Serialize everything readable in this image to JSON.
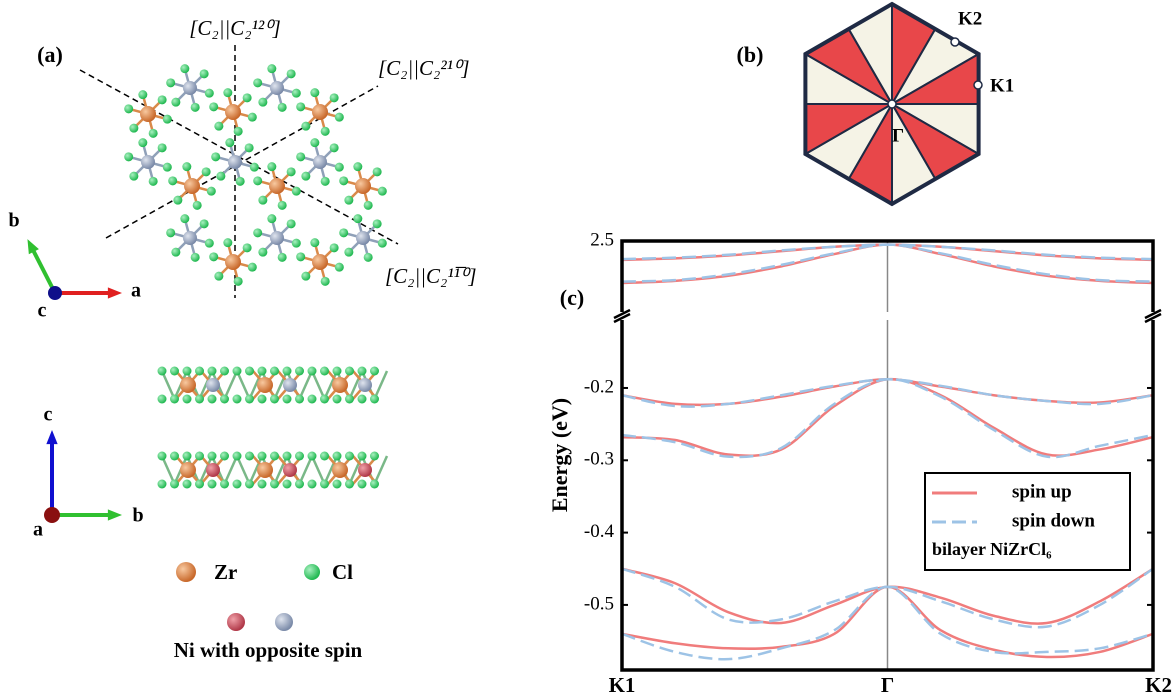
{
  "panel_a": {
    "label": "(a)",
    "symmetry_ops": [
      "[C₂||C₂¹²⁰]",
      "[C₂||C₂²¹⁰]",
      "[C₂||C₂¹¹̅⁰]"
    ],
    "top_axes": {
      "a": "a",
      "b": "b",
      "c": "c"
    },
    "side_axes": {
      "c": "c",
      "b": "b",
      "a": "a"
    },
    "legend": {
      "zr": "Zr",
      "cl": "Cl",
      "ni": "Ni with opposite spin"
    }
  },
  "panel_b": {
    "label": "(b)",
    "points": {
      "k2": "K2",
      "k1": "K1",
      "gamma": "Γ"
    }
  },
  "chart_data": {
    "type": "line",
    "panel_label": "(c)",
    "y_label": "Energy (eV)",
    "x": [
      0,
      0.1,
      0.2,
      0.3,
      0.4,
      0.5,
      0.6,
      0.7,
      0.8,
      0.9,
      1
    ],
    "xlim": [
      0,
      1
    ],
    "xticks": [
      {
        "value": 0,
        "label": "K1"
      },
      {
        "value": 0.5,
        "label": "Γ"
      },
      {
        "value": 1,
        "label": "K2"
      }
    ],
    "ylim": [
      -0.59,
      -0.106
    ],
    "yticks": [
      -0.2,
      -0.3,
      -0.4,
      -0.5
    ],
    "ylim_upper": [
      2.402,
      2.5
    ],
    "yticks_upper": [
      2.5
    ],
    "series": [
      {
        "name": "spin up",
        "color": "#f07c7c",
        "dashed": false,
        "bands": [
          [
            -0.21,
            -0.222,
            -0.222,
            -0.212,
            -0.198,
            -0.188,
            -0.198,
            -0.21,
            -0.218,
            -0.22,
            -0.21
          ],
          [
            -0.268,
            -0.272,
            -0.292,
            -0.285,
            -0.225,
            -0.188,
            -0.21,
            -0.255,
            -0.292,
            -0.285,
            -0.268
          ],
          [
            -0.45,
            -0.47,
            -0.51,
            -0.525,
            -0.5,
            -0.475,
            -0.49,
            -0.515,
            -0.525,
            -0.495,
            -0.45
          ],
          [
            -0.54,
            -0.553,
            -0.56,
            -0.558,
            -0.54,
            -0.475,
            -0.535,
            -0.562,
            -0.572,
            -0.565,
            -0.54
          ]
        ],
        "bands_upper": [
          [
            2.474,
            2.476,
            2.48,
            2.486,
            2.492,
            2.495,
            2.492,
            2.486,
            2.48,
            2.476,
            2.474
          ],
          [
            2.442,
            2.445,
            2.452,
            2.465,
            2.482,
            2.495,
            2.482,
            2.465,
            2.452,
            2.445,
            2.442
          ]
        ]
      },
      {
        "name": "spin down",
        "color": "#9dc3e6",
        "dashed": true,
        "bands": [
          [
            -0.21,
            -0.225,
            -0.222,
            -0.21,
            -0.197,
            -0.188,
            -0.197,
            -0.21,
            -0.218,
            -0.222,
            -0.21
          ],
          [
            -0.265,
            -0.275,
            -0.295,
            -0.283,
            -0.222,
            -0.188,
            -0.212,
            -0.258,
            -0.295,
            -0.28,
            -0.265
          ],
          [
            -0.45,
            -0.475,
            -0.52,
            -0.52,
            -0.495,
            -0.475,
            -0.495,
            -0.52,
            -0.53,
            -0.5,
            -0.45
          ],
          [
            -0.54,
            -0.565,
            -0.575,
            -0.56,
            -0.535,
            -0.475,
            -0.54,
            -0.565,
            -0.565,
            -0.56,
            -0.54
          ]
        ],
        "bands_upper": [
          [
            2.475,
            2.477,
            2.481,
            2.487,
            2.492,
            2.495,
            2.492,
            2.487,
            2.481,
            2.477,
            2.475
          ],
          [
            2.444,
            2.446,
            2.454,
            2.467,
            2.483,
            2.495,
            2.483,
            2.467,
            2.454,
            2.446,
            2.444
          ]
        ]
      }
    ],
    "legend_note": "bilayer  NiZrCl₆"
  }
}
